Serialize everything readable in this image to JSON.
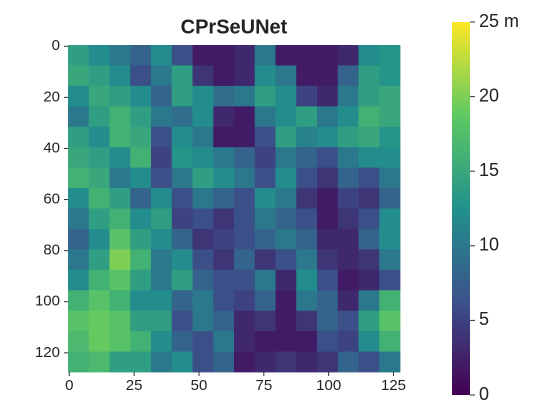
{
  "chart_data": {
    "type": "heatmap",
    "title": "CPrSeUNet",
    "colormap": "viridis",
    "xlim": [
      -0.5,
      127.5
    ],
    "ylim": [
      127.5,
      -0.5
    ],
    "xticks": [
      0,
      25,
      50,
      75,
      100,
      125
    ],
    "yticks": [
      0,
      20,
      40,
      60,
      80,
      100,
      120
    ],
    "zlim": [
      0,
      25
    ],
    "zticks": [
      0,
      5,
      10,
      15,
      20,
      {
        "value": 25,
        "label": "25 m"
      }
    ],
    "z": [
      [
        14,
        12,
        10,
        8,
        12,
        6,
        2,
        2,
        3,
        10,
        2,
        2,
        2,
        3,
        12,
        13
      ],
      [
        15,
        14,
        12,
        6,
        10,
        14,
        4,
        2,
        3,
        12,
        10,
        2,
        2,
        8,
        14,
        13
      ],
      [
        12,
        15,
        14,
        12,
        8,
        14,
        12,
        9,
        10,
        14,
        12,
        5,
        3,
        10,
        14,
        15
      ],
      [
        10,
        14,
        16,
        14,
        10,
        9,
        12,
        3,
        2,
        10,
        12,
        14,
        10,
        12,
        16,
        15
      ],
      [
        14,
        12,
        16,
        15,
        6,
        12,
        10,
        2,
        2,
        6,
        14,
        11,
        12,
        14,
        15,
        13
      ],
      [
        15,
        14,
        12,
        16,
        5,
        13,
        12,
        10,
        8,
        5,
        10,
        8,
        6,
        10,
        12,
        12
      ],
      [
        16,
        15,
        10,
        12,
        6,
        10,
        14,
        12,
        10,
        6,
        12,
        6,
        4,
        8,
        6,
        10
      ],
      [
        12,
        16,
        14,
        8,
        12,
        6,
        10,
        8,
        6,
        12,
        10,
        4,
        2,
        5,
        4,
        8
      ],
      [
        10,
        14,
        16,
        12,
        14,
        5,
        6,
        4,
        6,
        10,
        8,
        6,
        2,
        4,
        6,
        12
      ],
      [
        8,
        12,
        18,
        14,
        12,
        8,
        4,
        5,
        6,
        8,
        10,
        8,
        3,
        3,
        8,
        12
      ],
      [
        10,
        14,
        20,
        16,
        10,
        12,
        6,
        4,
        8,
        4,
        6,
        10,
        4,
        3,
        4,
        10
      ],
      [
        12,
        16,
        18,
        14,
        10,
        14,
        8,
        6,
        6,
        10,
        3,
        12,
        6,
        2,
        3,
        6
      ],
      [
        16,
        18,
        16,
        12,
        12,
        8,
        10,
        6,
        5,
        8,
        2,
        10,
        8,
        3,
        10,
        16
      ],
      [
        18,
        19,
        18,
        14,
        14,
        6,
        10,
        8,
        3,
        4,
        2,
        4,
        8,
        6,
        14,
        18
      ],
      [
        17,
        19,
        18,
        16,
        12,
        8,
        6,
        10,
        3,
        2,
        2,
        2,
        6,
        5,
        12,
        16
      ],
      [
        16,
        17,
        14,
        14,
        10,
        12,
        6,
        8,
        2,
        3,
        4,
        3,
        4,
        8,
        6,
        10
      ]
    ]
  }
}
